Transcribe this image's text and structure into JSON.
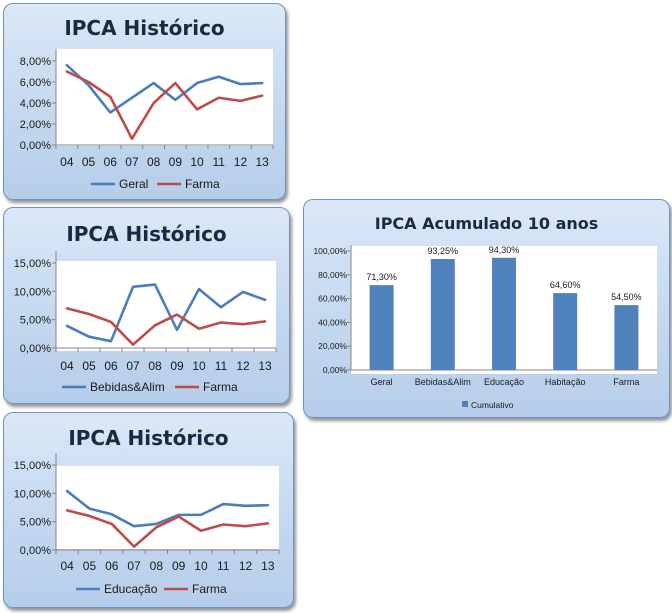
{
  "colors": {
    "blue": "#4a7ebb",
    "red": "#be4b48",
    "bar": "#4f81bd",
    "axis": "#868686"
  },
  "chart_data": [
    {
      "type": "line",
      "title": "IPCA Histórico",
      "categories": [
        "04",
        "05",
        "06",
        "07",
        "08",
        "09",
        "10",
        "11",
        "12",
        "13"
      ],
      "ylim": [
        0,
        8
      ],
      "yticks": [
        "0,00%",
        "2,00%",
        "4,00%",
        "6,00%",
        "8,00%"
      ],
      "ytick_values": [
        0,
        2,
        4,
        6,
        8
      ],
      "series": [
        {
          "name": "Geral",
          "color": "#4a7ebb",
          "values": [
            7.6,
            5.7,
            3.1,
            4.5,
            5.9,
            4.3,
            5.9,
            6.5,
            5.8,
            5.9
          ]
        },
        {
          "name": "Farma",
          "color": "#be4b48",
          "values": [
            7.0,
            6.0,
            4.6,
            0.6,
            4.0,
            5.9,
            3.4,
            4.5,
            4.2,
            4.7
          ]
        }
      ]
    },
    {
      "type": "line",
      "title": "IPCA Histórico",
      "categories": [
        "04",
        "05",
        "06",
        "07",
        "08",
        "09",
        "10",
        "11",
        "12",
        "13"
      ],
      "ylim": [
        0,
        15
      ],
      "yticks": [
        "0,00%",
        "5,00%",
        "10,00%",
        "15,00%"
      ],
      "ytick_values": [
        0,
        5,
        10,
        15
      ],
      "series": [
        {
          "name": "Bebidas&Alim",
          "color": "#4a7ebb",
          "values": [
            3.9,
            2.0,
            1.2,
            10.8,
            11.2,
            3.2,
            10.4,
            7.2,
            9.9,
            8.5
          ]
        },
        {
          "name": "Farma",
          "color": "#be4b48",
          "values": [
            7.0,
            6.0,
            4.6,
            0.6,
            4.0,
            5.9,
            3.4,
            4.5,
            4.2,
            4.7
          ]
        }
      ]
    },
    {
      "type": "line",
      "title": "IPCA Histórico",
      "categories": [
        "04",
        "05",
        "06",
        "07",
        "08",
        "09",
        "10",
        "11",
        "12",
        "13"
      ],
      "ylim": [
        0,
        15
      ],
      "yticks": [
        "0,00%",
        "5,00%",
        "10,00%",
        "15,00%"
      ],
      "ytick_values": [
        0,
        5,
        10,
        15
      ],
      "series": [
        {
          "name": "Educação",
          "color": "#4a7ebb",
          "values": [
            10.4,
            7.3,
            6.3,
            4.2,
            4.6,
            6.2,
            6.2,
            8.1,
            7.8,
            7.9
          ]
        },
        {
          "name": "Farma",
          "color": "#be4b48",
          "values": [
            7.0,
            6.0,
            4.6,
            0.6,
            4.0,
            5.9,
            3.4,
            4.5,
            4.2,
            4.7
          ]
        }
      ]
    },
    {
      "type": "bar",
      "title": "IPCA Acumulado 10 anos",
      "categories": [
        "Geral",
        "Bebidas&Alim",
        "Educação",
        "Habitação",
        "Farma"
      ],
      "values": [
        71.3,
        93.25,
        94.3,
        64.6,
        54.5
      ],
      "data_labels": [
        "71,30%",
        "93,25%",
        "94,30%",
        "64,60%",
        "54,50%"
      ],
      "ylim": [
        0,
        100
      ],
      "yticks": [
        "0,00%",
        "20,00%",
        "40,00%",
        "60,00%",
        "80,00%",
        "100,00%"
      ],
      "ytick_values": [
        0,
        20,
        40,
        60,
        80,
        100
      ],
      "series": [
        {
          "name": "Cumulativo"
        }
      ]
    }
  ]
}
